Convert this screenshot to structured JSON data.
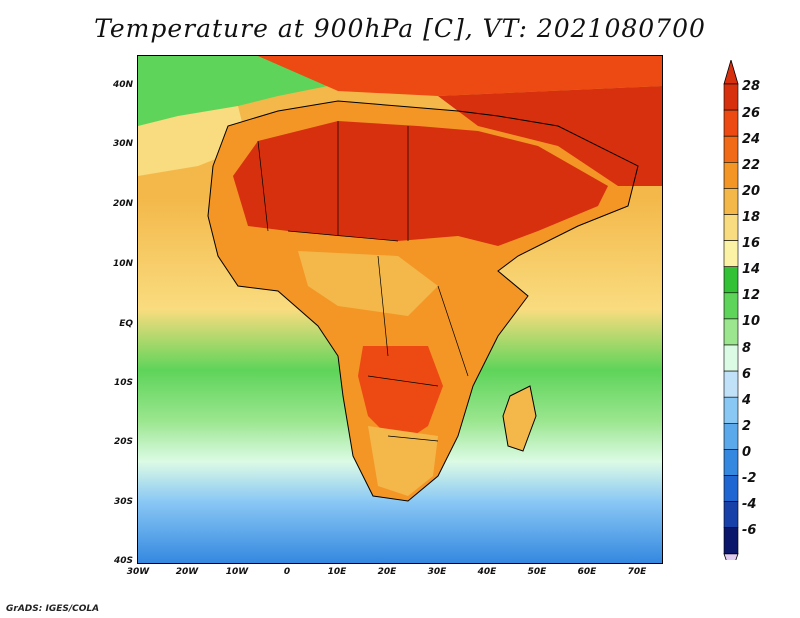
{
  "title": "Temperature at 900hPa [C], VT: 2021080700",
  "credit": "GrADS: IGES/COLA",
  "lat_labels": [
    "40N",
    "30N",
    "20N",
    "10N",
    "EQ",
    "10S",
    "20S",
    "30S",
    "40S"
  ],
  "lon_labels": [
    "30W",
    "20W",
    "10W",
    "0",
    "10E",
    "20E",
    "30E",
    "40E",
    "50E",
    "60E",
    "70E"
  ],
  "colorbar": {
    "labels": [
      "28",
      "26",
      "24",
      "22",
      "20",
      "18",
      "16",
      "14",
      "12",
      "10",
      "8",
      "6",
      "4",
      "2",
      "0",
      "-2",
      "-4",
      "-6"
    ],
    "colors": [
      "#d7300f",
      "#ec4a12",
      "#f06a18",
      "#f39626",
      "#f4b84a",
      "#f9dc7f",
      "#fbf2a6",
      "#33c136",
      "#5ed45a",
      "#9be68f",
      "#dcfbe5",
      "#c1e1f9",
      "#89c7f4",
      "#5ba8ea",
      "#3488e0",
      "#1f66d2",
      "#1740a8",
      "#0b176a"
    ],
    "over_color": "#d7300f",
    "under_color": "#e1ccf2"
  }
}
